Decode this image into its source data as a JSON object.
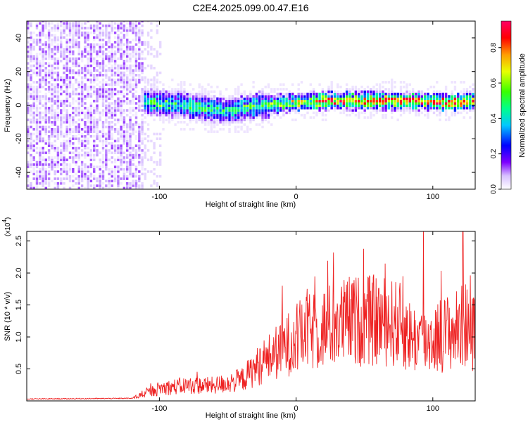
{
  "title": "C2E4.2025.099.00.47.E16",
  "chart_data": [
    {
      "type": "heatmap",
      "xlabel": "Height of straight line (km)",
      "ylabel": "Frequency (Hz)",
      "xlim": [
        -197,
        131
      ],
      "ylim": [
        -50,
        50
      ],
      "x_ticks": [
        -100,
        0,
        100
      ],
      "y_ticks": [
        -40,
        -20,
        0,
        20,
        40
      ],
      "colorbar": {
        "label": "Normalized spectral amplitude",
        "range": [
          0,
          0.95
        ],
        "ticks": [
          0.0,
          0.2,
          0.4,
          0.6,
          0.8
        ],
        "colors": [
          "#ffffff",
          "#d7c0ff",
          "#7d00ff",
          "#0000ff",
          "#00c8ff",
          "#00ff8a",
          "#39ff00",
          "#e8ff00",
          "#ff9d00",
          "#ff0000",
          "#ff0064"
        ]
      },
      "regions": [
        {
          "x": [
            -197,
            -112
          ],
          "description_value": "scattered noise over full band, amplitude 0.05-0.15"
        },
        {
          "x": [
            -112,
            131
          ],
          "center_frequency_hz": [
            1,
            0,
            -4,
            -1,
            1,
            2,
            2,
            2,
            1,
            2
          ],
          "center_x_km": [
            -112,
            -90,
            -50,
            -30,
            0,
            20,
            50,
            80,
            110,
            131
          ],
          "peak_amplitude": 0.95
        }
      ]
    },
    {
      "type": "line",
      "xlabel": "Height of straight line (km)",
      "ylabel": "SNR (10 * v/v)",
      "multiplier_label": "(x10",
      "multiplier_exp": "4",
      "xlim": [
        -197,
        131
      ],
      "ylim": [
        0,
        2.65
      ],
      "x_ticks": [
        -100,
        0,
        100
      ],
      "y_ticks": [
        0.5,
        1.0,
        1.5,
        2.0,
        2.5
      ],
      "color": "#ee2222",
      "envelope": {
        "x": [
          -197,
          -120,
          -115,
          -100,
          -80,
          -60,
          -40,
          -25,
          -10,
          0,
          20,
          40,
          60,
          75,
          85,
          95,
          105,
          115,
          125,
          131
        ],
        "y": [
          0.03,
          0.04,
          0.07,
          0.18,
          0.22,
          0.22,
          0.3,
          0.55,
          0.75,
          0.9,
          1.05,
          1.15,
          1.15,
          1.1,
          0.9,
          0.85,
          0.95,
          1.0,
          1.1,
          0.95
        ]
      },
      "peaks": [
        {
          "x": 93,
          "y": 2.65
        },
        {
          "x": 122,
          "y": 2.65
        },
        {
          "x": 78,
          "y": 1.95
        },
        {
          "x": 8,
          "y": 1.75
        },
        {
          "x": -10,
          "y": 1.8
        }
      ]
    }
  ]
}
